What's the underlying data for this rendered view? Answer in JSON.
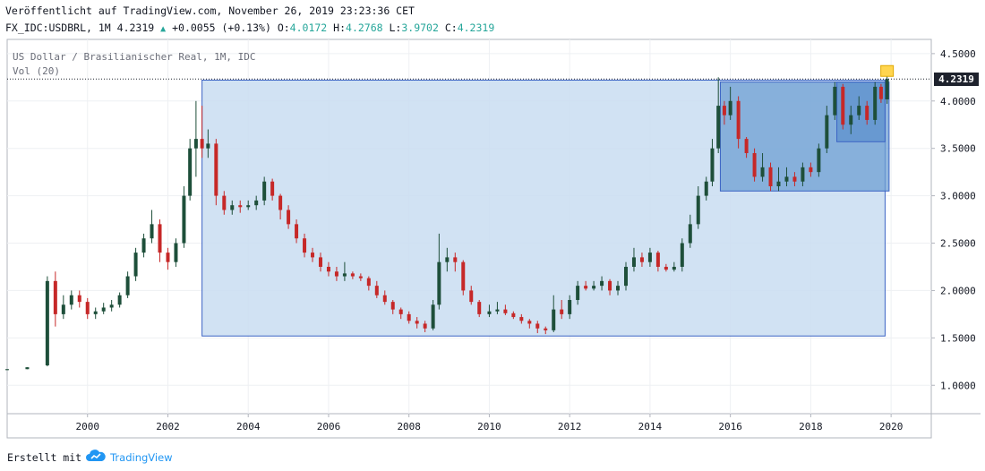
{
  "header": {
    "line1": "Veröffentlicht auf TradingView.com, November 26, 2019 23:23:36 CET",
    "symbol": "FX_IDC:USDBRL, 1M",
    "last": "4.2319",
    "change_arrow": "▲",
    "change": "+0.0055 (+0.13%)",
    "o_label": "O:",
    "o_value": "4.0172",
    "h_label": "H:",
    "h_value": "4.2768",
    "l_label": "L:",
    "l_value": "3.9702",
    "c_label": "C:",
    "c_value": "4.2319"
  },
  "legend": {
    "title": "US Dollar / Brasilianischer Real, 1M, IDC",
    "volume": "Vol (20)"
  },
  "price_label": "4.2319",
  "footer": {
    "created_with": "Erstellt mit",
    "brand": "TradingView",
    "brand_icon": "tradingview-cloud-icon"
  },
  "colors": {
    "up": "#1e4f3a",
    "down": "#c62828",
    "box_fill": "#c9ddf1",
    "box_stroke": "#3b63c4",
    "box_fill_dark": "#6e9fd3",
    "price_tag": "#1e222d",
    "marker": "#ffd54f"
  },
  "chart_data": {
    "type": "candlestick",
    "title": "US Dollar / Brasilianischer Real, 1M, IDC",
    "ylim": [
      0.7,
      4.65
    ],
    "xlim": [
      1998.0,
      2021.0
    ],
    "y_ticks": [
      "1.0000",
      "1.5000",
      "2.0000",
      "2.5000",
      "3.0000",
      "3.5000",
      "4.0000",
      "4.5000"
    ],
    "x_ticks": [
      "2000",
      "2002",
      "2004",
      "2006",
      "2008",
      "2010",
      "2012",
      "2014",
      "2016",
      "2018",
      "2020"
    ],
    "grid": true,
    "candles": [
      {
        "t": 1998.0,
        "o": 1.16,
        "c": 1.17,
        "h": 1.17,
        "l": 1.16
      },
      {
        "t": 1998.5,
        "o": 1.17,
        "c": 1.19,
        "h": 1.19,
        "l": 1.17
      },
      {
        "t": 1999.0,
        "o": 1.21,
        "c": 2.1,
        "h": 2.15,
        "l": 1.2
      },
      {
        "t": 1999.2,
        "o": 2.1,
        "c": 1.75,
        "h": 2.2,
        "l": 1.62
      },
      {
        "t": 1999.4,
        "o": 1.75,
        "c": 1.85,
        "h": 1.95,
        "l": 1.7
      },
      {
        "t": 1999.6,
        "o": 1.85,
        "c": 1.95,
        "h": 2.0,
        "l": 1.8
      },
      {
        "t": 1999.8,
        "o": 1.95,
        "c": 1.88,
        "h": 2.0,
        "l": 1.82
      },
      {
        "t": 2000.0,
        "o": 1.88,
        "c": 1.75,
        "h": 1.92,
        "l": 1.7
      },
      {
        "t": 2000.2,
        "o": 1.75,
        "c": 1.78,
        "h": 1.82,
        "l": 1.7
      },
      {
        "t": 2000.4,
        "o": 1.78,
        "c": 1.82,
        "h": 1.87,
        "l": 1.75
      },
      {
        "t": 2000.6,
        "o": 1.82,
        "c": 1.85,
        "h": 1.9,
        "l": 1.78
      },
      {
        "t": 2000.8,
        "o": 1.85,
        "c": 1.95,
        "h": 1.98,
        "l": 1.82
      },
      {
        "t": 2001.0,
        "o": 1.95,
        "c": 2.15,
        "h": 2.2,
        "l": 1.92
      },
      {
        "t": 2001.2,
        "o": 2.15,
        "c": 2.4,
        "h": 2.45,
        "l": 2.1
      },
      {
        "t": 2001.4,
        "o": 2.4,
        "c": 2.55,
        "h": 2.6,
        "l": 2.35
      },
      {
        "t": 2001.6,
        "o": 2.55,
        "c": 2.7,
        "h": 2.85,
        "l": 2.5
      },
      {
        "t": 2001.8,
        "o": 2.7,
        "c": 2.4,
        "h": 2.75,
        "l": 2.3
      },
      {
        "t": 2002.0,
        "o": 2.4,
        "c": 2.3,
        "h": 2.45,
        "l": 2.22
      },
      {
        "t": 2002.2,
        "o": 2.3,
        "c": 2.5,
        "h": 2.55,
        "l": 2.25
      },
      {
        "t": 2002.4,
        "o": 2.5,
        "c": 3.0,
        "h": 3.1,
        "l": 2.45
      },
      {
        "t": 2002.55,
        "o": 3.0,
        "c": 3.5,
        "h": 3.6,
        "l": 2.95
      },
      {
        "t": 2002.7,
        "o": 3.5,
        "c": 3.6,
        "h": 4.0,
        "l": 3.2
      },
      {
        "t": 2002.85,
        "o": 3.6,
        "c": 3.5,
        "h": 3.95,
        "l": 3.4
      },
      {
        "t": 2003.0,
        "o": 3.5,
        "c": 3.55,
        "h": 3.7,
        "l": 3.4
      },
      {
        "t": 2003.2,
        "o": 3.55,
        "c": 3.0,
        "h": 3.6,
        "l": 2.9
      },
      {
        "t": 2003.4,
        "o": 3.0,
        "c": 2.85,
        "h": 3.05,
        "l": 2.8
      },
      {
        "t": 2003.6,
        "o": 2.85,
        "c": 2.9,
        "h": 2.95,
        "l": 2.8
      },
      {
        "t": 2003.8,
        "o": 2.9,
        "c": 2.88,
        "h": 2.95,
        "l": 2.82
      },
      {
        "t": 2004.0,
        "o": 2.88,
        "c": 2.9,
        "h": 2.95,
        "l": 2.85
      },
      {
        "t": 2004.2,
        "o": 2.9,
        "c": 2.95,
        "h": 3.0,
        "l": 2.85
      },
      {
        "t": 2004.4,
        "o": 2.95,
        "c": 3.15,
        "h": 3.2,
        "l": 2.9
      },
      {
        "t": 2004.6,
        "o": 3.15,
        "c": 3.0,
        "h": 3.18,
        "l": 2.95
      },
      {
        "t": 2004.8,
        "o": 3.0,
        "c": 2.85,
        "h": 3.02,
        "l": 2.75
      },
      {
        "t": 2005.0,
        "o": 2.85,
        "c": 2.7,
        "h": 2.9,
        "l": 2.65
      },
      {
        "t": 2005.2,
        "o": 2.7,
        "c": 2.55,
        "h": 2.75,
        "l": 2.5
      },
      {
        "t": 2005.4,
        "o": 2.55,
        "c": 2.4,
        "h": 2.6,
        "l": 2.35
      },
      {
        "t": 2005.6,
        "o": 2.4,
        "c": 2.35,
        "h": 2.45,
        "l": 2.3
      },
      {
        "t": 2005.8,
        "o": 2.35,
        "c": 2.25,
        "h": 2.4,
        "l": 2.2
      },
      {
        "t": 2006.0,
        "o": 2.25,
        "c": 2.2,
        "h": 2.3,
        "l": 2.15
      },
      {
        "t": 2006.2,
        "o": 2.2,
        "c": 2.15,
        "h": 2.25,
        "l": 2.1
      },
      {
        "t": 2006.4,
        "o": 2.15,
        "c": 2.18,
        "h": 2.3,
        "l": 2.1
      },
      {
        "t": 2006.6,
        "o": 2.18,
        "c": 2.15,
        "h": 2.2,
        "l": 2.12
      },
      {
        "t": 2006.8,
        "o": 2.15,
        "c": 2.13,
        "h": 2.18,
        "l": 2.1
      },
      {
        "t": 2007.0,
        "o": 2.13,
        "c": 2.05,
        "h": 2.15,
        "l": 2.0
      },
      {
        "t": 2007.2,
        "o": 2.05,
        "c": 1.95,
        "h": 2.1,
        "l": 1.92
      },
      {
        "t": 2007.4,
        "o": 1.95,
        "c": 1.88,
        "h": 2.0,
        "l": 1.85
      },
      {
        "t": 2007.6,
        "o": 1.88,
        "c": 1.8,
        "h": 1.9,
        "l": 1.75
      },
      {
        "t": 2007.8,
        "o": 1.8,
        "c": 1.75,
        "h": 1.82,
        "l": 1.7
      },
      {
        "t": 2008.0,
        "o": 1.75,
        "c": 1.68,
        "h": 1.78,
        "l": 1.65
      },
      {
        "t": 2008.2,
        "o": 1.68,
        "c": 1.65,
        "h": 1.72,
        "l": 1.6
      },
      {
        "t": 2008.4,
        "o": 1.65,
        "c": 1.6,
        "h": 1.68,
        "l": 1.56
      },
      {
        "t": 2008.6,
        "o": 1.6,
        "c": 1.85,
        "h": 1.9,
        "l": 1.58
      },
      {
        "t": 2008.75,
        "o": 1.85,
        "c": 2.3,
        "h": 2.6,
        "l": 1.8
      },
      {
        "t": 2008.95,
        "o": 2.3,
        "c": 2.35,
        "h": 2.45,
        "l": 2.2
      },
      {
        "t": 2009.15,
        "o": 2.35,
        "c": 2.3,
        "h": 2.4,
        "l": 2.2
      },
      {
        "t": 2009.35,
        "o": 2.3,
        "c": 2.0,
        "h": 2.32,
        "l": 1.95
      },
      {
        "t": 2009.55,
        "o": 2.0,
        "c": 1.88,
        "h": 2.05,
        "l": 1.85
      },
      {
        "t": 2009.75,
        "o": 1.88,
        "c": 1.75,
        "h": 1.9,
        "l": 1.72
      },
      {
        "t": 2010.0,
        "o": 1.75,
        "c": 1.78,
        "h": 1.85,
        "l": 1.72
      },
      {
        "t": 2010.2,
        "o": 1.78,
        "c": 1.8,
        "h": 1.88,
        "l": 1.75
      },
      {
        "t": 2010.4,
        "o": 1.8,
        "c": 1.76,
        "h": 1.85,
        "l": 1.74
      },
      {
        "t": 2010.6,
        "o": 1.76,
        "c": 1.72,
        "h": 1.78,
        "l": 1.7
      },
      {
        "t": 2010.8,
        "o": 1.72,
        "c": 1.68,
        "h": 1.75,
        "l": 1.65
      },
      {
        "t": 2011.0,
        "o": 1.68,
        "c": 1.65,
        "h": 1.7,
        "l": 1.6
      },
      {
        "t": 2011.2,
        "o": 1.65,
        "c": 1.6,
        "h": 1.68,
        "l": 1.55
      },
      {
        "t": 2011.4,
        "o": 1.6,
        "c": 1.58,
        "h": 1.62,
        "l": 1.54
      },
      {
        "t": 2011.6,
        "o": 1.58,
        "c": 1.8,
        "h": 1.95,
        "l": 1.56
      },
      {
        "t": 2011.8,
        "o": 1.8,
        "c": 1.75,
        "h": 1.9,
        "l": 1.7
      },
      {
        "t": 2012.0,
        "o": 1.75,
        "c": 1.9,
        "h": 1.95,
        "l": 1.7
      },
      {
        "t": 2012.2,
        "o": 1.9,
        "c": 2.05,
        "h": 2.1,
        "l": 1.85
      },
      {
        "t": 2012.4,
        "o": 2.05,
        "c": 2.02,
        "h": 2.1,
        "l": 2.0
      },
      {
        "t": 2012.6,
        "o": 2.02,
        "c": 2.05,
        "h": 2.1,
        "l": 2.0
      },
      {
        "t": 2012.8,
        "o": 2.05,
        "c": 2.1,
        "h": 2.15,
        "l": 2.0
      },
      {
        "t": 2013.0,
        "o": 2.1,
        "c": 2.0,
        "h": 2.12,
        "l": 1.95
      },
      {
        "t": 2013.2,
        "o": 2.0,
        "c": 2.05,
        "h": 2.1,
        "l": 1.95
      },
      {
        "t": 2013.4,
        "o": 2.05,
        "c": 2.25,
        "h": 2.3,
        "l": 2.0
      },
      {
        "t": 2013.6,
        "o": 2.25,
        "c": 2.35,
        "h": 2.45,
        "l": 2.2
      },
      {
        "t": 2013.8,
        "o": 2.35,
        "c": 2.3,
        "h": 2.4,
        "l": 2.25
      },
      {
        "t": 2014.0,
        "o": 2.3,
        "c": 2.4,
        "h": 2.45,
        "l": 2.25
      },
      {
        "t": 2014.2,
        "o": 2.4,
        "c": 2.25,
        "h": 2.42,
        "l": 2.2
      },
      {
        "t": 2014.4,
        "o": 2.25,
        "c": 2.22,
        "h": 2.28,
        "l": 2.2
      },
      {
        "t": 2014.6,
        "o": 2.22,
        "c": 2.25,
        "h": 2.3,
        "l": 2.2
      },
      {
        "t": 2014.8,
        "o": 2.25,
        "c": 2.5,
        "h": 2.55,
        "l": 2.2
      },
      {
        "t": 2015.0,
        "o": 2.5,
        "c": 2.7,
        "h": 2.8,
        "l": 2.45
      },
      {
        "t": 2015.2,
        "o": 2.7,
        "c": 3.0,
        "h": 3.1,
        "l": 2.65
      },
      {
        "t": 2015.4,
        "o": 3.0,
        "c": 3.15,
        "h": 3.2,
        "l": 2.95
      },
      {
        "t": 2015.55,
        "o": 3.15,
        "c": 3.5,
        "h": 3.6,
        "l": 3.1
      },
      {
        "t": 2015.7,
        "o": 3.5,
        "c": 3.95,
        "h": 4.25,
        "l": 3.45
      },
      {
        "t": 2015.85,
        "o": 3.95,
        "c": 3.85,
        "h": 4.0,
        "l": 3.75
      },
      {
        "t": 2016.0,
        "o": 3.85,
        "c": 4.0,
        "h": 4.15,
        "l": 3.8
      },
      {
        "t": 2016.2,
        "o": 4.0,
        "c": 3.6,
        "h": 4.05,
        "l": 3.5
      },
      {
        "t": 2016.4,
        "o": 3.6,
        "c": 3.45,
        "h": 3.62,
        "l": 3.4
      },
      {
        "t": 2016.6,
        "o": 3.45,
        "c": 3.2,
        "h": 3.5,
        "l": 3.15
      },
      {
        "t": 2016.8,
        "o": 3.2,
        "c": 3.3,
        "h": 3.45,
        "l": 3.15
      },
      {
        "t": 2017.0,
        "o": 3.3,
        "c": 3.1,
        "h": 3.35,
        "l": 3.05
      },
      {
        "t": 2017.2,
        "o": 3.1,
        "c": 3.15,
        "h": 3.3,
        "l": 3.05
      },
      {
        "t": 2017.4,
        "o": 3.15,
        "c": 3.2,
        "h": 3.3,
        "l": 3.1
      },
      {
        "t": 2017.6,
        "o": 3.2,
        "c": 3.15,
        "h": 3.25,
        "l": 3.1
      },
      {
        "t": 2017.8,
        "o": 3.15,
        "c": 3.3,
        "h": 3.35,
        "l": 3.1
      },
      {
        "t": 2018.0,
        "o": 3.3,
        "c": 3.25,
        "h": 3.35,
        "l": 3.2
      },
      {
        "t": 2018.2,
        "o": 3.25,
        "c": 3.5,
        "h": 3.55,
        "l": 3.2
      },
      {
        "t": 2018.4,
        "o": 3.5,
        "c": 3.85,
        "h": 3.95,
        "l": 3.45
      },
      {
        "t": 2018.6,
        "o": 3.85,
        "c": 4.15,
        "h": 4.2,
        "l": 3.8
      },
      {
        "t": 2018.8,
        "o": 4.15,
        "c": 3.75,
        "h": 4.18,
        "l": 3.7
      },
      {
        "t": 2019.0,
        "o": 3.75,
        "c": 3.85,
        "h": 3.95,
        "l": 3.65
      },
      {
        "t": 2019.2,
        "o": 3.85,
        "c": 3.95,
        "h": 4.05,
        "l": 3.8
      },
      {
        "t": 2019.4,
        "o": 3.95,
        "c": 3.8,
        "h": 4.0,
        "l": 3.75
      },
      {
        "t": 2019.6,
        "o": 3.8,
        "c": 4.15,
        "h": 4.2,
        "l": 3.75
      },
      {
        "t": 2019.75,
        "o": 4.15,
        "c": 4.02,
        "h": 4.18,
        "l": 3.98
      },
      {
        "t": 2019.9,
        "o": 4.0172,
        "c": 4.2319,
        "h": 4.2768,
        "l": 3.9702
      }
    ],
    "rectangles": [
      {
        "x0": 2002.85,
        "x1": 2019.85,
        "y0": 1.52,
        "y1": 4.22,
        "style": "light"
      },
      {
        "x0": 2015.75,
        "x1": 2019.95,
        "y0": 3.05,
        "y1": 4.2,
        "style": "medium"
      },
      {
        "x0": 2018.65,
        "x1": 2019.85,
        "y0": 3.57,
        "y1": 4.2,
        "style": "dark"
      }
    ],
    "last_price": 4.2319
  }
}
